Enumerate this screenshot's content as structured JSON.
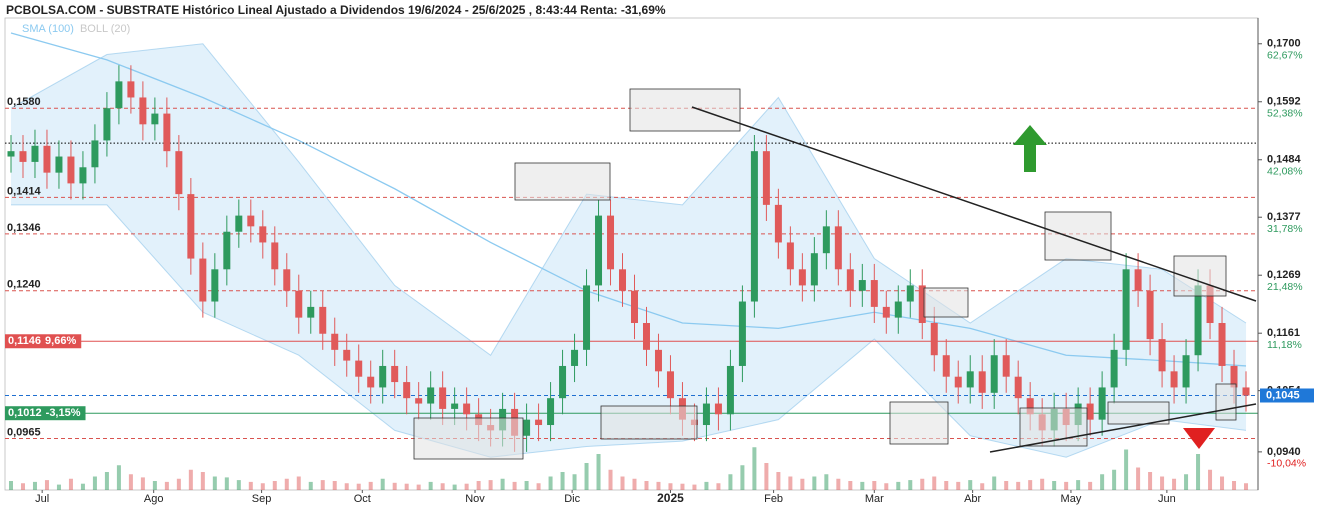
{
  "chart_data": {
    "type": "candlestick",
    "title": "PCBOLSA.COM - SUBSTRATE Histórico Lineal Ajustado a Dividendos 19/6/2024 - 25/6/2025 , 8:43:44 Renta: -31,69%",
    "legend": [
      {
        "name": "SMA (100)",
        "color": "#8ccaf0"
      },
      {
        "name": "BOLL (20)",
        "color": "#c8c8c8"
      }
    ],
    "up_color": "#2e9a5e",
    "down_color": "#e05a5a",
    "xlim": [
      -0.5,
      104
    ],
    "xticks": [
      {
        "value": 2.6,
        "label": "Jul"
      },
      {
        "value": 11.9,
        "label": "Ago"
      },
      {
        "value": 20.9,
        "label": "Sep"
      },
      {
        "value": 29.3,
        "label": "Oct"
      },
      {
        "value": 38.7,
        "label": "Nov"
      },
      {
        "value": 46.8,
        "label": "Dic"
      },
      {
        "value": 55,
        "label": "2025"
      },
      {
        "value": 63.6,
        "label": "Feb"
      },
      {
        "value": 72,
        "label": "Mar"
      },
      {
        "value": 80.2,
        "label": "Abr"
      },
      {
        "value": 88.4,
        "label": "May"
      },
      {
        "value": 96.4,
        "label": "Jun"
      }
    ],
    "ylim": [
      0.0869,
      0.1748
    ],
    "yticks": [
      {
        "value": 0.17,
        "label": "0,1700"
      },
      {
        "value": 0.1592,
        "label": "0,1592"
      },
      {
        "value": 0.1484,
        "label": "0,1484"
      },
      {
        "value": 0.1377,
        "label": "0,1377"
      },
      {
        "value": 0.1269,
        "label": "0,1269"
      },
      {
        "value": 0.1161,
        "label": "0,1161"
      },
      {
        "value": 0.1054,
        "label": "0,1054"
      },
      {
        "value": 0.094,
        "label": "0,0940"
      }
    ],
    "ytick_pct": [
      "62,67%",
      "52,38%",
      "42,08%",
      "31,78%",
      "21,48%",
      "11,18%",
      null,
      "-10,04%"
    ],
    "levels": [
      {
        "value": 0.158,
        "label": "0,1580",
        "style": "dashed",
        "color": "#d9534f"
      },
      {
        "value": 0.1414,
        "label": "0,1414",
        "style": "dashed",
        "color": "#d9534f"
      },
      {
        "value": 0.1346,
        "label": "0,1346",
        "style": "dashed",
        "color": "#d9534f"
      },
      {
        "value": 0.124,
        "label": "0,1240",
        "style": "dashed",
        "color": "#d9534f"
      },
      {
        "value": 0.1146,
        "label": "0,1146",
        "pct": "9,66%",
        "style": "solid",
        "color": "#e05050"
      },
      {
        "value": 0.1012,
        "label": "0,1012",
        "pct": "-3,15%",
        "style": "solid",
        "color": "#2e9a5e"
      },
      {
        "value": 0.0965,
        "label": "0,0965",
        "style": "dashed",
        "color": "#d9534f"
      },
      {
        "value": 0.1515,
        "style": "dotted",
        "color": "#000000"
      },
      {
        "value": 0.1045,
        "style": "dashed",
        "color": "#1f6fd0"
      }
    ],
    "last": {
      "value": 0.1045,
      "label": "0,1045",
      "color": "#1f78d8"
    },
    "open": [
      0.149,
      0.15,
      0.148,
      0.151,
      0.146,
      0.149,
      0.144,
      0.147,
      0.152,
      0.158,
      0.163,
      0.16,
      0.155,
      0.157,
      0.15,
      0.142,
      0.13,
      0.122,
      0.128,
      0.135,
      0.138,
      0.136,
      0.133,
      0.128,
      0.124,
      0.119,
      0.121,
      0.116,
      0.113,
      0.111,
      0.108,
      0.106,
      0.11,
      0.107,
      0.104,
      0.103,
      0.106,
      0.102,
      0.103,
      0.101,
      0.099,
      0.098,
      0.102,
      0.097,
      0.1,
      0.099,
      0.104,
      0.11,
      0.113,
      0.125,
      0.138,
      0.128,
      0.124,
      0.118,
      0.113,
      0.109,
      0.104,
      0.1,
      0.099,
      0.103,
      0.101,
      0.11,
      0.122,
      0.15,
      0.14,
      0.133,
      0.128,
      0.125,
      0.131,
      0.136,
      0.128,
      0.124,
      0.126,
      0.121,
      0.119,
      0.122,
      0.125,
      0.118,
      0.112,
      0.108,
      0.106,
      0.109,
      0.105,
      0.112,
      0.108,
      0.104,
      0.101,
      0.098,
      0.102,
      0.099,
      0.103,
      0.1,
      0.106,
      0.113,
      0.128,
      0.124,
      0.115,
      0.109,
      0.106,
      0.112,
      0.125,
      0.118,
      0.11,
      0.106
    ],
    "high": [
      0.153,
      0.153,
      0.154,
      0.154,
      0.152,
      0.152,
      0.15,
      0.155,
      0.161,
      0.166,
      0.166,
      0.163,
      0.16,
      0.16,
      0.153,
      0.145,
      0.133,
      0.131,
      0.138,
      0.141,
      0.141,
      0.139,
      0.136,
      0.131,
      0.127,
      0.124,
      0.124,
      0.119,
      0.116,
      0.114,
      0.111,
      0.113,
      0.113,
      0.11,
      0.107,
      0.109,
      0.109,
      0.106,
      0.106,
      0.104,
      0.102,
      0.105,
      0.105,
      0.103,
      0.103,
      0.107,
      0.113,
      0.116,
      0.128,
      0.141,
      0.141,
      0.131,
      0.127,
      0.121,
      0.116,
      0.112,
      0.107,
      0.103,
      0.106,
      0.106,
      0.113,
      0.125,
      0.153,
      0.153,
      0.143,
      0.136,
      0.131,
      0.134,
      0.139,
      0.139,
      0.131,
      0.129,
      0.129,
      0.124,
      0.125,
      0.128,
      0.128,
      0.121,
      0.115,
      0.111,
      0.112,
      0.112,
      0.115,
      0.115,
      0.111,
      0.107,
      0.104,
      0.105,
      0.105,
      0.106,
      0.106,
      0.109,
      0.116,
      0.131,
      0.131,
      0.127,
      0.118,
      0.112,
      0.115,
      0.128,
      0.128,
      0.121,
      0.113,
      0.109
    ],
    "low": [
      0.146,
      0.145,
      0.145,
      0.143,
      0.143,
      0.141,
      0.141,
      0.144,
      0.149,
      0.155,
      0.157,
      0.152,
      0.152,
      0.147,
      0.139,
      0.127,
      0.119,
      0.119,
      0.125,
      0.132,
      0.133,
      0.13,
      0.125,
      0.121,
      0.116,
      0.116,
      0.113,
      0.11,
      0.108,
      0.105,
      0.103,
      0.103,
      0.104,
      0.101,
      0.1,
      0.1,
      0.099,
      0.099,
      0.098,
      0.096,
      0.095,
      0.095,
      0.094,
      0.094,
      0.096,
      0.096,
      0.101,
      0.107,
      0.11,
      0.122,
      0.125,
      0.121,
      0.115,
      0.11,
      0.106,
      0.101,
      0.097,
      0.096,
      0.096,
      0.098,
      0.098,
      0.107,
      0.119,
      0.137,
      0.13,
      0.125,
      0.122,
      0.122,
      0.128,
      0.125,
      0.121,
      0.121,
      0.118,
      0.116,
      0.116,
      0.119,
      0.115,
      0.109,
      0.105,
      0.103,
      0.103,
      0.102,
      0.102,
      0.105,
      0.101,
      0.098,
      0.095,
      0.095,
      0.096,
      0.096,
      0.097,
      0.097,
      0.103,
      0.11,
      0.121,
      0.112,
      0.106,
      0.103,
      0.103,
      0.109,
      0.115,
      0.107,
      0.103,
      0.1015
    ],
    "close": [
      0.15,
      0.148,
      0.151,
      0.146,
      0.149,
      0.144,
      0.147,
      0.152,
      0.158,
      0.163,
      0.16,
      0.155,
      0.157,
      0.15,
      0.142,
      0.13,
      0.122,
      0.128,
      0.135,
      0.138,
      0.136,
      0.133,
      0.128,
      0.124,
      0.119,
      0.121,
      0.116,
      0.113,
      0.111,
      0.108,
      0.106,
      0.11,
      0.107,
      0.104,
      0.103,
      0.106,
      0.102,
      0.103,
      0.101,
      0.099,
      0.098,
      0.102,
      0.097,
      0.1,
      0.099,
      0.104,
      0.11,
      0.113,
      0.125,
      0.138,
      0.128,
      0.124,
      0.118,
      0.113,
      0.109,
      0.104,
      0.1,
      0.099,
      0.103,
      0.101,
      0.11,
      0.122,
      0.15,
      0.14,
      0.133,
      0.128,
      0.125,
      0.131,
      0.136,
      0.128,
      0.124,
      0.126,
      0.121,
      0.119,
      0.122,
      0.125,
      0.118,
      0.112,
      0.108,
      0.106,
      0.109,
      0.105,
      0.112,
      0.108,
      0.104,
      0.101,
      0.098,
      0.102,
      0.099,
      0.103,
      0.1,
      0.106,
      0.113,
      0.128,
      0.124,
      0.115,
      0.109,
      0.106,
      0.112,
      0.125,
      0.118,
      0.11,
      0.106,
      0.1045
    ],
    "vlim": [
      0,
      100
    ],
    "volume": [
      20,
      15,
      18,
      22,
      12,
      25,
      14,
      30,
      40,
      55,
      35,
      28,
      20,
      18,
      25,
      45,
      40,
      30,
      28,
      22,
      18,
      15,
      20,
      25,
      30,
      18,
      22,
      20,
      15,
      14,
      18,
      25,
      16,
      14,
      12,
      18,
      15,
      12,
      14,
      20,
      22,
      25,
      18,
      20,
      15,
      30,
      40,
      35,
      60,
      80,
      45,
      30,
      25,
      20,
      18,
      15,
      14,
      12,
      18,
      15,
      35,
      55,
      95,
      60,
      40,
      30,
      25,
      30,
      35,
      25,
      20,
      18,
      20,
      15,
      18,
      22,
      25,
      30,
      20,
      18,
      22,
      15,
      30,
      20,
      18,
      22,
      25,
      20,
      18,
      22,
      18,
      35,
      45,
      90,
      50,
      40,
      30,
      25,
      35,
      80,
      45,
      30,
      20,
      15
    ],
    "overlay_x": [
      0,
      8,
      16,
      24,
      32,
      40,
      48,
      56,
      64,
      72,
      80,
      88,
      96,
      103
    ],
    "sma": [
      0.172,
      0.167,
      0.16,
      0.152,
      0.143,
      0.133,
      0.124,
      0.118,
      0.117,
      0.12,
      0.117,
      0.112,
      0.111,
      0.11
    ],
    "boll_upper": [
      0.158,
      0.168,
      0.17,
      0.148,
      0.125,
      0.112,
      0.142,
      0.14,
      0.16,
      0.13,
      0.118,
      0.13,
      0.128,
      0.118
    ],
    "boll_lower": [
      0.14,
      0.14,
      0.12,
      0.112,
      0.098,
      0.093,
      0.095,
      0.096,
      0.1,
      0.115,
      0.097,
      0.093,
      0.1,
      0.098
    ]
  }
}
